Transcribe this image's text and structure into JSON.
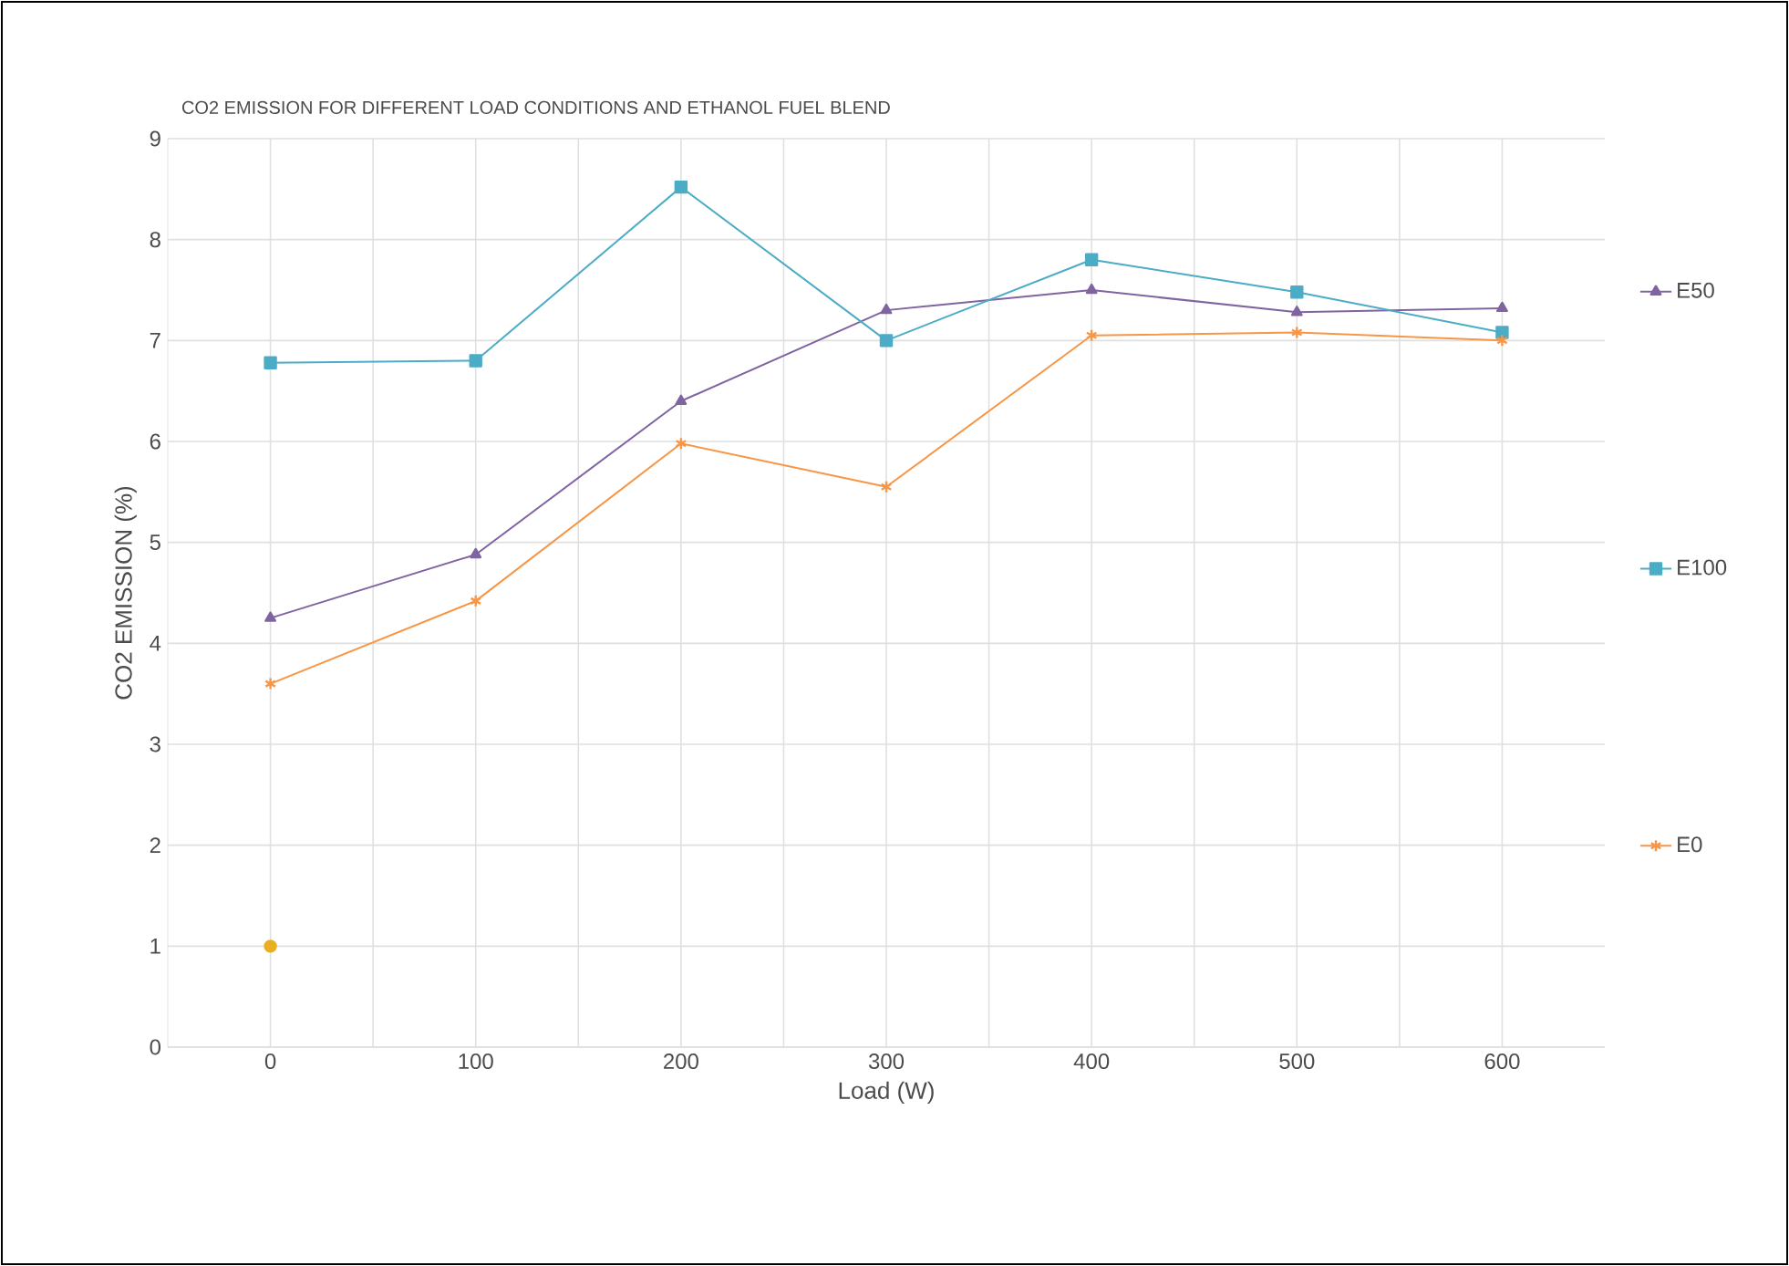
{
  "chart_data": {
    "type": "line",
    "title": "CO2 EMISSION FOR DIFFERENT LOAD CONDITIONS AND ETHANOL FUEL BLEND",
    "xlabel": "Load (W)",
    "ylabel": "CO2  EMISSION (%)",
    "x": [
      0,
      100,
      200,
      300,
      400,
      500,
      600
    ],
    "series": [
      {
        "name": "E50",
        "color": "#8064a2",
        "marker": "triangle",
        "values": [
          4.25,
          4.88,
          6.4,
          7.3,
          7.5,
          7.28,
          7.32
        ]
      },
      {
        "name": "E100",
        "color": "#4bacc6",
        "marker": "square",
        "values": [
          6.78,
          6.8,
          8.52,
          7.0,
          7.8,
          7.48,
          7.08
        ]
      },
      {
        "name": "E0",
        "color": "#f79646",
        "marker": "cross",
        "values": [
          3.6,
          4.42,
          5.98,
          5.55,
          7.05,
          7.08,
          7.0
        ]
      },
      {
        "type": "scatter",
        "color": "#e8b020",
        "marker": "circle",
        "x": [
          0
        ],
        "values": [
          1
        ]
      }
    ],
    "xlim": [
      -50,
      650
    ],
    "xticks": [
      0,
      {
        "value": 50,
        "label": null
      },
      100,
      {
        "value": 150,
        "label": null
      },
      200,
      {
        "value": 250,
        "label": null
      },
      300,
      {
        "value": 350,
        "label": null
      },
      400,
      {
        "value": 450,
        "label": null
      },
      500,
      {
        "value": 550,
        "label": null
      },
      600
    ],
    "ylim": [
      0,
      9
    ],
    "yticks": [
      0,
      1,
      2,
      3,
      4,
      5,
      6,
      7,
      8,
      9
    ],
    "grid": true,
    "legend": "right"
  }
}
